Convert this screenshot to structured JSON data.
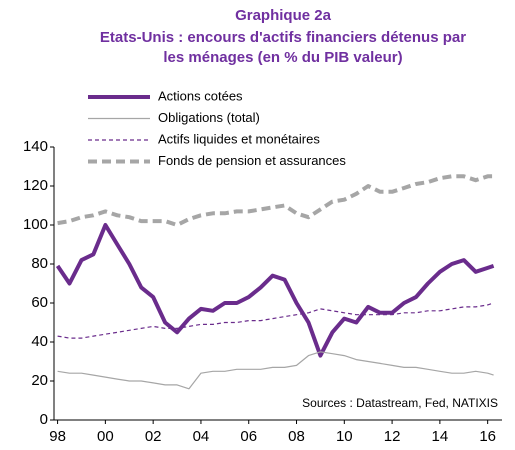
{
  "chart_data": {
    "type": "line",
    "title": "Graphique 2a",
    "subtitle": [
      "Etats-Unis : encours d'actifs financiers détenus par",
      "les ménages (en % du PIB valeur)"
    ],
    "source": "Sources : Datastream, Fed, NATIXIS",
    "x": [
      1998,
      1998.5,
      1999,
      1999.5,
      2000,
      2000.5,
      2001,
      2001.5,
      2002,
      2002.5,
      2003,
      2003.5,
      2004,
      2004.5,
      2005,
      2005.5,
      2006,
      2006.5,
      2007,
      2007.5,
      2008,
      2008.5,
      2009,
      2009.5,
      2010,
      2010.5,
      2011,
      2011.5,
      2012,
      2012.5,
      2013,
      2013.5,
      2014,
      2014.5,
      2015,
      2015.5,
      2016,
      2016.25
    ],
    "series": [
      {
        "name": "Actions cotées",
        "color": "#6a2c8c",
        "width": 4,
        "dash": "none",
        "values": [
          79,
          70,
          82,
          85,
          100,
          90,
          80,
          68,
          63,
          50,
          45,
          52,
          57,
          56,
          60,
          60,
          63,
          68,
          74,
          72,
          60,
          50,
          33,
          45,
          52,
          50,
          58,
          55,
          55,
          60,
          63,
          70,
          76,
          80,
          82,
          76,
          78,
          79
        ]
      },
      {
        "name": "Obligations (total)",
        "color": "#a6a6a6",
        "width": 1.2,
        "dash": "none",
        "values": [
          25,
          24,
          24,
          23,
          22,
          21,
          20,
          20,
          19,
          18,
          18,
          16,
          24,
          25,
          25,
          26,
          26,
          26,
          27,
          27,
          28,
          33,
          35,
          34,
          33,
          31,
          30,
          29,
          28,
          27,
          27,
          26,
          25,
          24,
          24,
          25,
          24,
          23
        ]
      },
      {
        "name": "Actifs liquides et monétaires",
        "color": "#6a2c8c",
        "width": 1.2,
        "dash": "4 3",
        "values": [
          43,
          42,
          42,
          43,
          44,
          45,
          46,
          47,
          48,
          47,
          47,
          48,
          49,
          49,
          50,
          50,
          51,
          51,
          52,
          53,
          54,
          55,
          57,
          56,
          55,
          54,
          54,
          54,
          54,
          55,
          55,
          56,
          56,
          57,
          58,
          58,
          59,
          60
        ]
      },
      {
        "name": "Fonds de pension et assurances",
        "color": "#a6a6a6",
        "width": 4,
        "dash": "9 5",
        "values": [
          101,
          102,
          104,
          105,
          107,
          105,
          104,
          102,
          102,
          102,
          100,
          103,
          105,
          106,
          106,
          107,
          107,
          108,
          109,
          110,
          106,
          104,
          108,
          112,
          113,
          116,
          120,
          117,
          117,
          119,
          121,
          122,
          124,
          125,
          125,
          123,
          125,
          125
        ]
      }
    ],
    "xlim": [
      1997.85,
      2016.6
    ],
    "xticks": [
      {
        "value": 1998,
        "label": "98"
      },
      {
        "value": 2000,
        "label": "00"
      },
      {
        "value": 2002,
        "label": "02"
      },
      {
        "value": 2004,
        "label": "04"
      },
      {
        "value": 2006,
        "label": "06"
      },
      {
        "value": 2008,
        "label": "08"
      },
      {
        "value": 2010,
        "label": "10"
      },
      {
        "value": 2012,
        "label": "12"
      },
      {
        "value": 2014,
        "label": "14"
      },
      {
        "value": 2016,
        "label": "16"
      }
    ],
    "ylim": [
      0,
      140
    ],
    "yticks": [
      0,
      20,
      40,
      60,
      80,
      100,
      120,
      140
    ],
    "grid": false,
    "legend": "upper left"
  }
}
